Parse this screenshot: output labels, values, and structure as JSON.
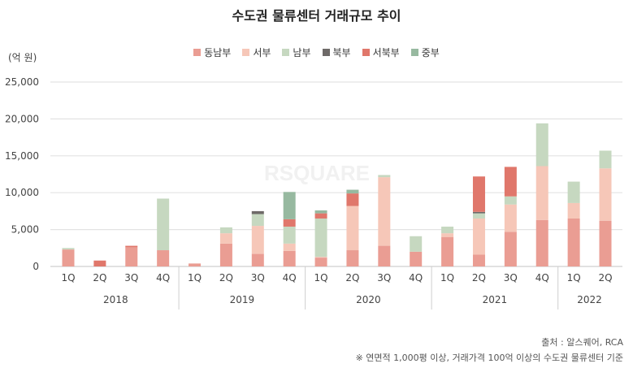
{
  "chart_data": {
    "type": "bar",
    "stacked": true,
    "title": "수도권 물류센터 거래규모 추이",
    "ylabel": "(억 원)",
    "ylim": [
      0,
      25000
    ],
    "yticks": [
      "0",
      "5,000",
      "10,000",
      "15,000",
      "20,000",
      "25,000"
    ],
    "ytick_values": [
      0,
      5000,
      10000,
      15000,
      20000,
      25000
    ],
    "grid": true,
    "legend_position": "top",
    "categories": [
      "1Q",
      "2Q",
      "3Q",
      "4Q",
      "1Q",
      "2Q",
      "3Q",
      "4Q",
      "1Q",
      "2Q",
      "3Q",
      "4Q",
      "1Q",
      "2Q",
      "3Q",
      "4Q",
      "1Q",
      "2Q"
    ],
    "years": [
      {
        "label": "2018",
        "count": 4
      },
      {
        "label": "2019",
        "count": 4
      },
      {
        "label": "2020",
        "count": 4
      },
      {
        "label": "2021",
        "count": 4
      },
      {
        "label": "2022",
        "count": 2
      }
    ],
    "series": [
      {
        "name": "동남부",
        "color": "#ea9d93",
        "values": [
          2300,
          0,
          2600,
          2200,
          400,
          3100,
          1700,
          2100,
          1200,
          2200,
          2800,
          2000,
          4000,
          1600,
          4700,
          6300,
          6500,
          6200
        ]
      },
      {
        "name": "서부",
        "color": "#f6c7b8",
        "values": [
          0,
          0,
          0,
          0,
          0,
          1400,
          3800,
          1000,
          100,
          6000,
          9300,
          0,
          500,
          4900,
          3700,
          7300,
          2100,
          7100
        ]
      },
      {
        "name": "남부",
        "color": "#c6d8c0",
        "values": [
          200,
          0,
          0,
          7000,
          0,
          800,
          1600,
          2300,
          5200,
          0,
          300,
          2100,
          900,
          700,
          1100,
          5800,
          2900,
          2400
        ]
      },
      {
        "name": "북부",
        "color": "#6e6a68",
        "values": [
          0,
          0,
          0,
          0,
          0,
          0,
          400,
          0,
          0,
          0,
          0,
          0,
          0,
          200,
          0,
          0,
          0,
          0
        ]
      },
      {
        "name": "서북부",
        "color": "#e0776b",
        "values": [
          0,
          800,
          200,
          0,
          0,
          0,
          0,
          1000,
          700,
          1700,
          0,
          0,
          0,
          4800,
          4000,
          0,
          0,
          0
        ]
      },
      {
        "name": "중부",
        "color": "#97b9a0",
        "values": [
          0,
          0,
          0,
          0,
          0,
          0,
          0,
          3700,
          400,
          500,
          0,
          0,
          0,
          0,
          0,
          0,
          0,
          0
        ]
      }
    ]
  },
  "watermark": "RSQUARE",
  "source": "출처 : 알스퀘어, RCA",
  "note": "※ 연면적 1,000평 이상, 거래가격 100억 이상의 수도권 물류센터 기준"
}
